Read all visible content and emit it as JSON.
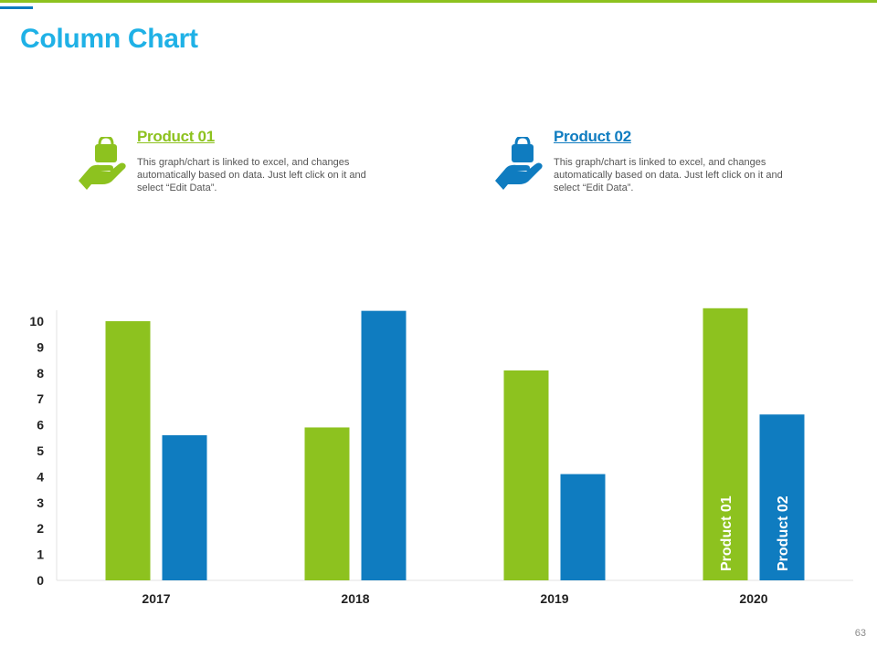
{
  "slide": {
    "title": "Column Chart",
    "page_number": "63"
  },
  "legend": [
    {
      "name": "Product 01",
      "color": "#8dc21f",
      "icon": "hand-holding-bag-icon",
      "description": "This graph/chart is linked to excel, and changes automatically based on data. Just left click on it and select “Edit Data”."
    },
    {
      "name": "Product 02",
      "color": "#0f7cc0",
      "icon": "hand-holding-bag-icon",
      "description": "This graph/chart is linked to excel, and changes automatically based on data. Just left click on it and select “Edit Data”."
    }
  ],
  "chart_data": {
    "type": "bar",
    "title": "",
    "xlabel": "",
    "ylabel": "",
    "categories": [
      "2017",
      "2018",
      "2019",
      "2020"
    ],
    "series": [
      {
        "name": "Product 01",
        "color": "#8dc21f",
        "values": [
          10.0,
          5.9,
          8.1,
          10.5
        ]
      },
      {
        "name": "Product 02",
        "color": "#0f7cc0",
        "values": [
          5.6,
          10.4,
          4.1,
          6.4
        ]
      }
    ],
    "ylim": [
      0,
      10
    ],
    "yticks": [
      "0",
      "1",
      "2",
      "3",
      "4",
      "5",
      "6",
      "7",
      "8",
      "9",
      "10"
    ],
    "grid": false,
    "inline_series_labels": [
      "Product 01",
      "Product 02"
    ]
  }
}
